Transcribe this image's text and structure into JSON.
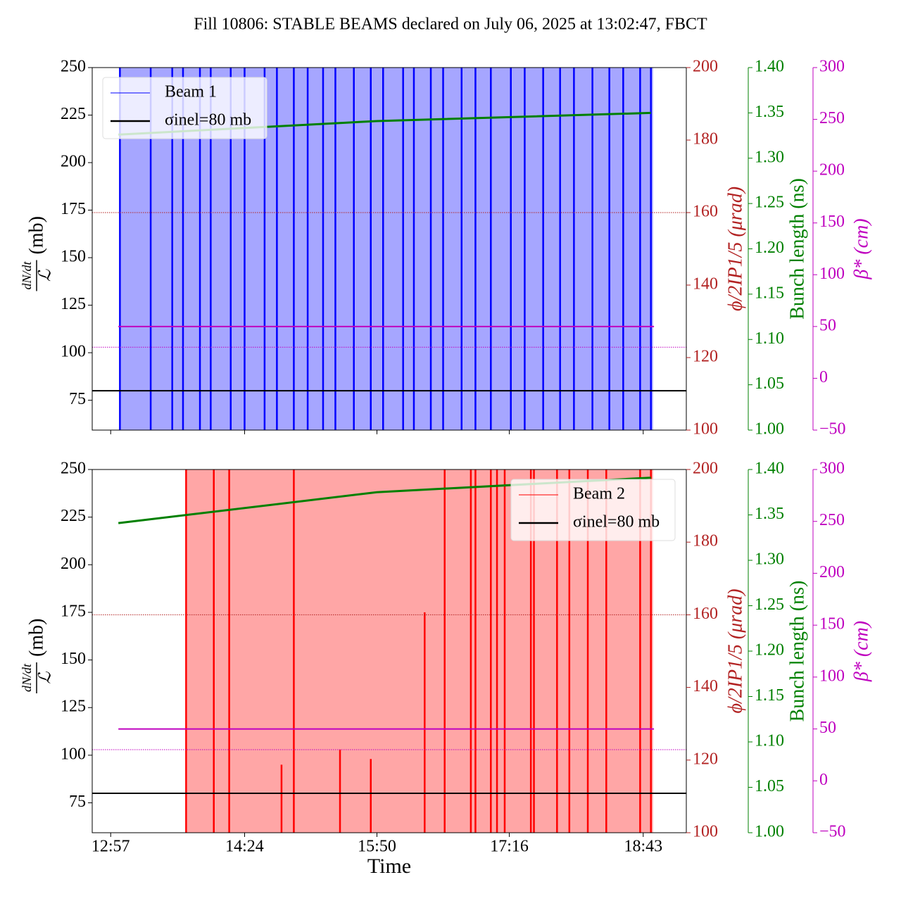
{
  "chart_data": [
    {
      "type": "line",
      "title": "Fill 10806: STABLE BEAMS declared on July 06, 2025 at 13:02:47, FBCT",
      "ylabel": {
        "numerator": "dN/dt",
        "denominator": "ℒ",
        "unit": "(mb)"
      },
      "y2label": "ϕ/2IP1/5 (μrad)",
      "y3label": "Bunch length (ns)",
      "y4label": "β* (cm)",
      "axis_colors": {
        "y2": "#b22222",
        "y3": "#008000",
        "y4": "#bf00bf"
      },
      "ylim": [
        59.3,
        250
      ],
      "yticks": [
        75,
        100,
        125,
        150,
        175,
        200,
        225,
        250
      ],
      "y2lim": [
        100,
        200
      ],
      "y2ticks": [
        100,
        120,
        140,
        160,
        180,
        200
      ],
      "y3lim": [
        1.0,
        1.4
      ],
      "y3ticks": [
        {
          "value": 1.0,
          "label": "1.00"
        },
        {
          "value": 1.05,
          "label": "1.05"
        },
        {
          "value": 1.1,
          "label": "1.10"
        },
        {
          "value": 1.15,
          "label": "1.15"
        },
        {
          "value": 1.2,
          "label": "1.20"
        },
        {
          "value": 1.25,
          "label": "1.25"
        },
        {
          "value": 1.3,
          "label": "1.30"
        },
        {
          "value": 1.35,
          "label": "1.35"
        },
        {
          "value": 1.4,
          "label": "1.40"
        }
      ],
      "y4lim": [
        -50,
        300
      ],
      "y4ticks": [
        {
          "value": -50,
          "label": "−50"
        },
        0,
        50,
        100,
        150,
        200,
        250,
        300
      ],
      "legend": "upper left",
      "series": [
        {
          "name": "Beam 1",
          "type": "bar",
          "color": "#0000ff",
          "x": [
            "13:03",
            "13:23",
            "13:37",
            "13:44",
            "13:55",
            "14:02",
            "14:15",
            "14:24",
            "14:37",
            "14:45",
            "14:56",
            "15:05",
            "15:15",
            "15:23",
            "15:35",
            "15:46",
            "15:54",
            "16:07",
            "16:14",
            "16:25",
            "16:33",
            "16:45",
            "16:54",
            "17:04",
            "17:17",
            "17:26",
            "17:38",
            "17:49",
            "17:58",
            "18:10",
            "18:21",
            "18:30",
            "18:41",
            "18:48"
          ],
          "values": [
            250,
            250,
            250,
            250,
            250,
            250,
            250,
            250,
            250,
            250,
            250,
            250,
            250,
            250,
            250,
            250,
            250,
            250,
            250,
            250,
            250,
            250,
            250,
            250,
            250,
            250,
            250,
            250,
            250,
            250,
            250,
            250,
            250,
            250
          ]
        },
        {
          "name": "σinel=80 mb",
          "type": "line",
          "color": "#000000",
          "x": [
            "12:45",
            "19:11"
          ],
          "values": [
            80,
            80
          ]
        },
        {
          "type": "line",
          "axis": "y3",
          "color": "#008000",
          "x": [
            "13:02",
            "15:50",
            "18:48"
          ],
          "values": [
            1.326,
            1.341,
            1.35
          ]
        },
        {
          "type": "line",
          "axis": "y2",
          "color": "#b22222",
          "style": "dotted",
          "x": [
            "12:45",
            "19:11"
          ],
          "values": [
            160,
            160
          ]
        },
        {
          "type": "line",
          "axis": "y4",
          "color": "#bf00bf",
          "style": "dotted",
          "x": [
            "12:45",
            "19:11"
          ],
          "values": [
            30,
            30
          ]
        },
        {
          "type": "line",
          "axis": "y4",
          "color": "#bf00bf",
          "x": [
            "13:02",
            "18:50"
          ],
          "values": [
            50,
            50
          ]
        }
      ]
    },
    {
      "type": "line",
      "xlabel": "Time",
      "ylabel": {
        "numerator": "dN/dt",
        "denominator": "ℒ",
        "unit": "(mb)"
      },
      "y2label": "ϕ/2IP1/5 (μrad)",
      "y3label": "Bunch length (ns)",
      "y4label": "β* (cm)",
      "axis_colors": {
        "y2": "#b22222",
        "y3": "#008000",
        "y4": "#bf00bf"
      },
      "xlim": [
        "12:45",
        "19:11"
      ],
      "xticks": [
        "12:57",
        "14:24",
        "15:50",
        "17:16",
        "18:43"
      ],
      "ylim": [
        59.3,
        250
      ],
      "yticks": [
        75,
        100,
        125,
        150,
        175,
        200,
        225,
        250
      ],
      "y2lim": [
        100,
        200
      ],
      "y2ticks": [
        100,
        120,
        140,
        160,
        180,
        200
      ],
      "y3lim": [
        1.0,
        1.4
      ],
      "y3ticks": [
        {
          "value": 1.0,
          "label": "1.00"
        },
        {
          "value": 1.05,
          "label": "1.05"
        },
        {
          "value": 1.1,
          "label": "1.10"
        },
        {
          "value": 1.15,
          "label": "1.15"
        },
        {
          "value": 1.2,
          "label": "1.20"
        },
        {
          "value": 1.25,
          "label": "1.25"
        },
        {
          "value": 1.3,
          "label": "1.30"
        },
        {
          "value": 1.35,
          "label": "1.35"
        },
        {
          "value": 1.4,
          "label": "1.40"
        }
      ],
      "y4lim": [
        -50,
        300
      ],
      "y4ticks": [
        {
          "value": -50,
          "label": "−50"
        },
        0,
        50,
        100,
        150,
        200,
        250,
        300
      ],
      "legend": "upper right",
      "series": [
        {
          "name": "Beam 2",
          "type": "bar",
          "color": "#ff0000",
          "x": [
            "13:46",
            "14:04",
            "14:14",
            "14:48",
            "14:56",
            "15:26",
            "15:46",
            "16:21",
            "16:34",
            "16:51",
            "16:54",
            "17:04",
            "17:08",
            "17:13",
            "17:30",
            "17:32",
            "17:47",
            "17:55",
            "18:07",
            "18:19",
            "18:41",
            "18:48"
          ],
          "values": [
            250,
            250,
            250,
            95,
            250,
            103,
            98,
            175,
            250,
            250,
            250,
            250,
            250,
            250,
            250,
            250,
            250,
            250,
            250,
            250,
            250,
            250
          ]
        },
        {
          "name": "σinel=80 mb",
          "type": "line",
          "color": "#000000",
          "x": [
            "12:45",
            "19:11"
          ],
          "values": [
            80,
            80
          ]
        },
        {
          "type": "line",
          "axis": "y3",
          "color": "#008000",
          "x": [
            "13:02",
            "15:50",
            "18:48"
          ],
          "values": [
            1.341,
            1.375,
            1.391
          ]
        },
        {
          "type": "line",
          "axis": "y2",
          "color": "#b22222",
          "style": "dotted",
          "x": [
            "12:45",
            "19:11"
          ],
          "values": [
            160,
            160
          ]
        },
        {
          "type": "line",
          "axis": "y4",
          "color": "#bf00bf",
          "style": "dotted",
          "x": [
            "12:45",
            "19:11"
          ],
          "values": [
            30,
            30
          ]
        },
        {
          "type": "line",
          "axis": "y4",
          "color": "#bf00bf",
          "x": [
            "13:02",
            "18:50"
          ],
          "values": [
            50,
            50
          ]
        }
      ]
    }
  ]
}
